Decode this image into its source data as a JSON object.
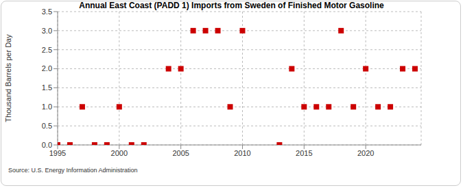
{
  "chart_data": {
    "type": "scatter",
    "title": "Annual East Coast (PADD 1) Imports from Sweden of Finished Motor Gasoline",
    "y_label": "Thousand Barrels per Day",
    "source": "Source: U.S. Energy Information Administration",
    "x": [
      1995,
      1996,
      1997,
      1998,
      1999,
      2000,
      2001,
      2002,
      2004,
      2005,
      2006,
      2007,
      2008,
      2009,
      2010,
      2013,
      2014,
      2015,
      2016,
      2017,
      2018,
      2019,
      2020,
      2021,
      2022,
      2023,
      2024
    ],
    "values": [
      0,
      0,
      1,
      0,
      0,
      1,
      0,
      0,
      2,
      2,
      3,
      3,
      3,
      1,
      3,
      0,
      2,
      1,
      1,
      1,
      3,
      1,
      2,
      1,
      1,
      2,
      2
    ],
    "color": "#cc0000",
    "marker": "square",
    "xlim": [
      1995,
      2024.5
    ],
    "xticks": [
      1995,
      2000,
      2005,
      2010,
      2015,
      2020
    ],
    "ylim": [
      0,
      3.5
    ],
    "yticks": [
      {
        "value": 0,
        "label": "0.0"
      },
      {
        "value": 0.5,
        "label": "0.5"
      },
      {
        "value": 1,
        "label": "1.0"
      },
      {
        "value": 1.5,
        "label": "1.5"
      },
      {
        "value": 2,
        "label": "2.0"
      },
      {
        "value": 2.5,
        "label": "2.5"
      },
      {
        "value": 3,
        "label": "3.0"
      },
      {
        "value": 3.5,
        "label": "3.5"
      }
    ],
    "grid": true
  }
}
